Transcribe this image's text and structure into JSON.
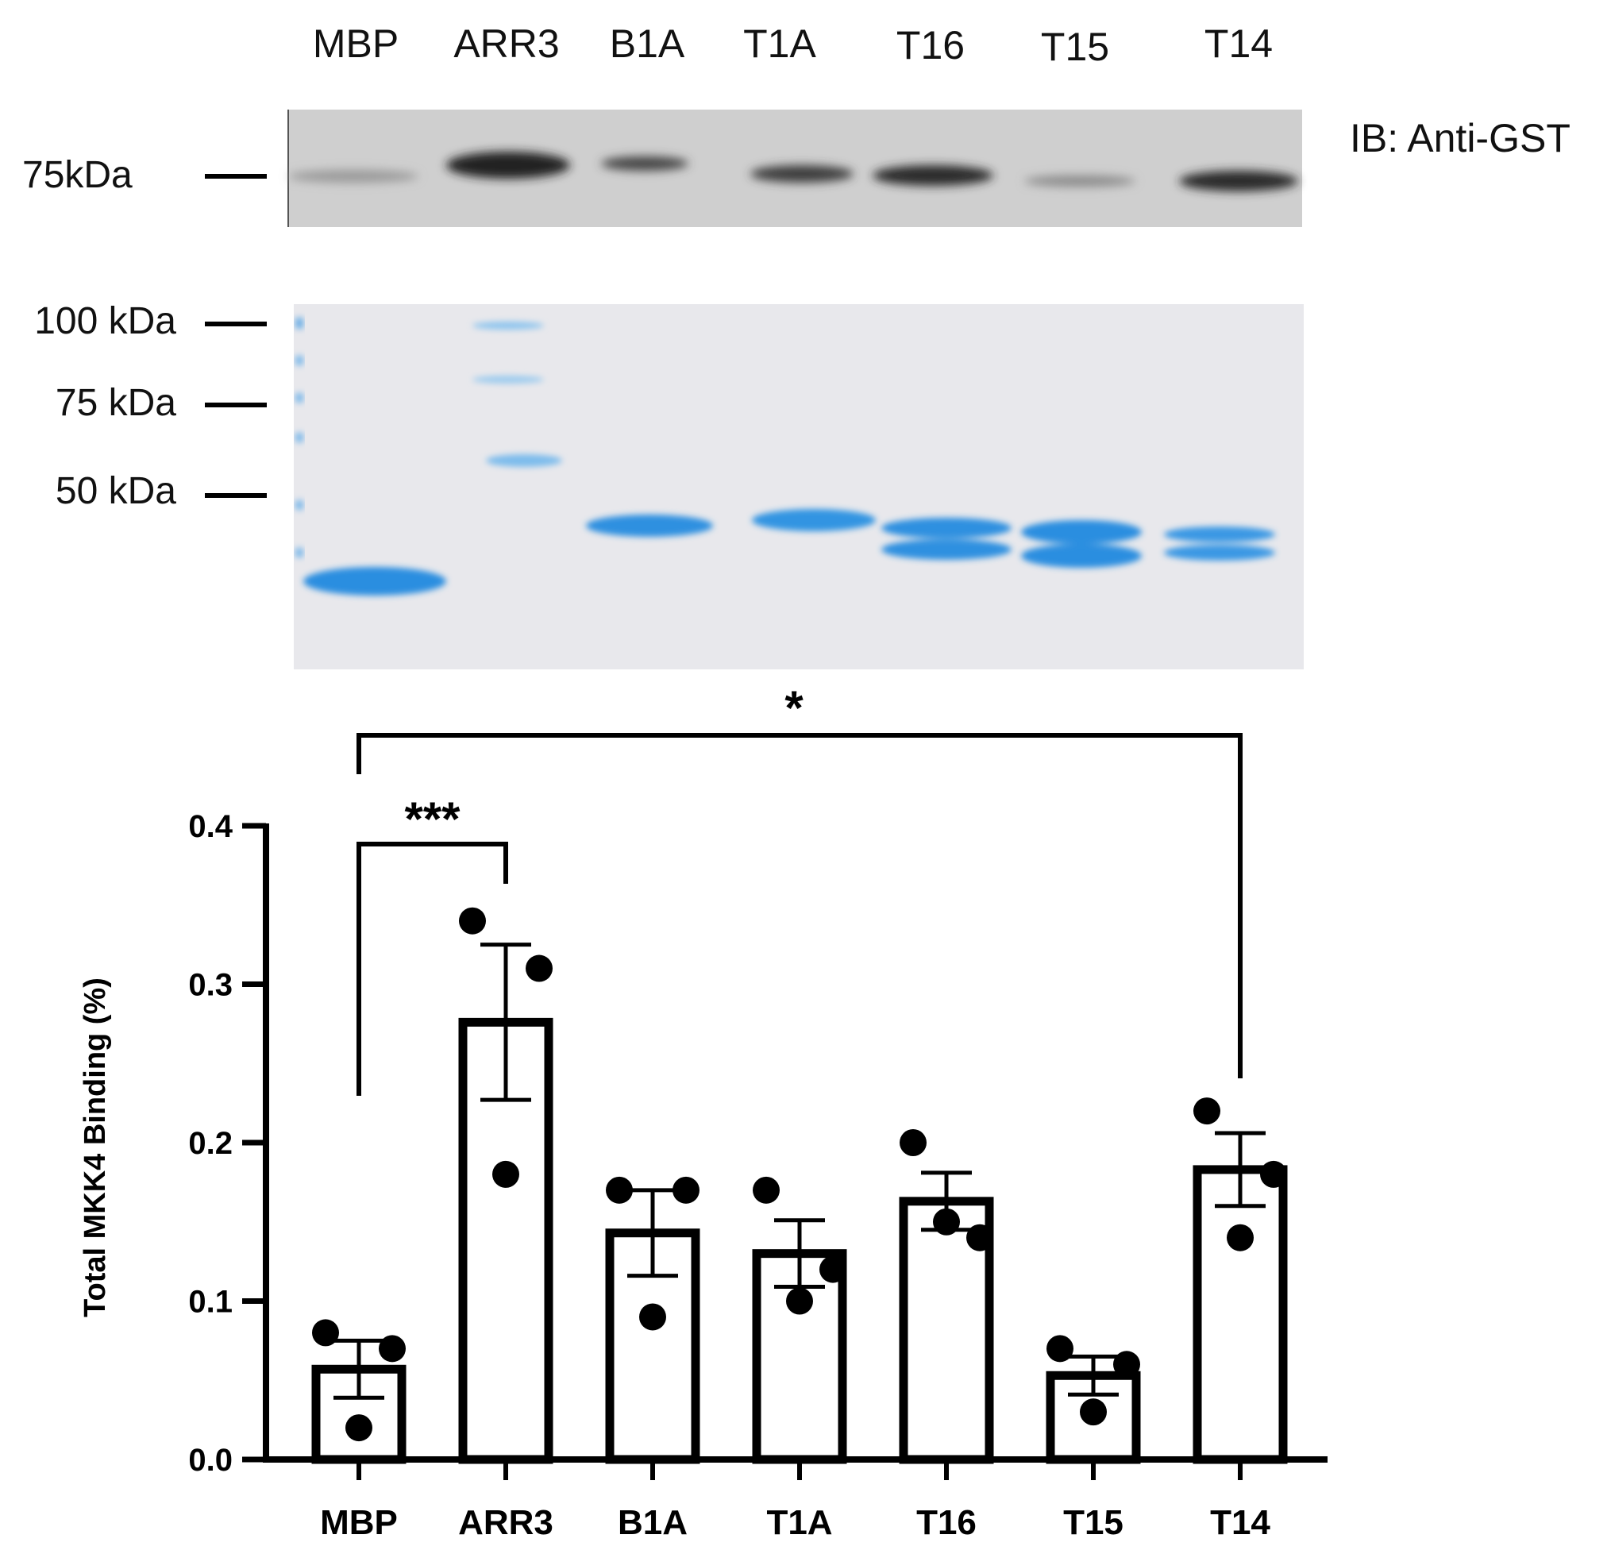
{
  "blot": {
    "lanes": [
      "MBP",
      "ARR3",
      "B1A",
      "T1A",
      "T16",
      "T15",
      "T14"
    ],
    "ib_label": "IB: Anti-GST",
    "ib_marker": "75kDa",
    "gel_markers": [
      "100 kDa",
      "75 kDa",
      "50 kDa"
    ]
  },
  "chart_data": {
    "type": "bar",
    "ylabel": "Total MKK4 Binding (%)",
    "ylim": [
      0,
      0.4
    ],
    "yticks": [
      "0.0",
      "0.1",
      "0.2",
      "0.3",
      "0.4"
    ],
    "categories": [
      "MBP",
      "ARR3",
      "B1A",
      "T1A",
      "T16",
      "T15",
      "T14"
    ],
    "values": [
      0.057,
      0.276,
      0.143,
      0.13,
      0.163,
      0.053,
      0.183
    ],
    "error": [
      0.018,
      0.049,
      0.027,
      0.021,
      0.018,
      0.012,
      0.023
    ],
    "points": [
      [
        0.08,
        0.07,
        0.02
      ],
      [
        0.34,
        0.31,
        0.18
      ],
      [
        0.17,
        0.17,
        0.09
      ],
      [
        0.17,
        0.12,
        0.1
      ],
      [
        0.2,
        0.14,
        0.15
      ],
      [
        0.07,
        0.06,
        0.03
      ],
      [
        0.22,
        0.18,
        0.14
      ]
    ],
    "significance": [
      {
        "from": "MBP",
        "to": "ARR3",
        "label": "***"
      },
      {
        "from": "MBP",
        "to": "T14",
        "label": "*"
      }
    ]
  }
}
